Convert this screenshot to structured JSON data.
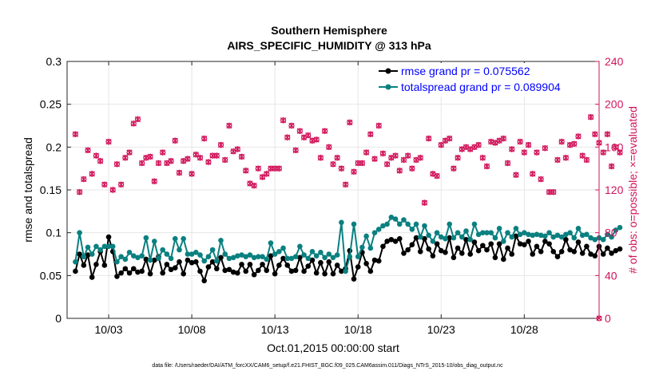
{
  "chart_data": {
    "type": "line",
    "title": "Southern Hemisphere",
    "subtitle": "AIRS_SPECIFIC_HUMIDITY @ 313 hPa",
    "xlabel": "Oct.01,2015 00:00:00 start",
    "ylabel_left": "rmse and totalspread",
    "ylabel_right": "# of obs: o=possible; ×=evaluated",
    "footnote": "data file: /Users/raeder/DAI/ATM_forcXX/CAM6_setup/f.e21.FHIST_BGC.f09_025.CAM6assim.011/Diags_NTrS_2015-10/obs_diag_output.nc",
    "xlim": [
      0.5,
      32.5
    ],
    "ylim_left": [
      0,
      0.3
    ],
    "ylim_right": [
      0,
      240
    ],
    "x_ticks": [
      {
        "value": 3,
        "label": "10/03"
      },
      {
        "value": 8,
        "label": "10/08"
      },
      {
        "value": 13,
        "label": "10/13"
      },
      {
        "value": 18,
        "label": "10/18"
      },
      {
        "value": 23,
        "label": "10/23"
      },
      {
        "value": 28,
        "label": "10/28"
      }
    ],
    "y_ticks_left": [
      {
        "value": 0,
        "label": "0"
      },
      {
        "value": 0.05,
        "label": "0.05"
      },
      {
        "value": 0.1,
        "label": "0.1"
      },
      {
        "value": 0.15,
        "label": "0.15"
      },
      {
        "value": 0.2,
        "label": "0.2"
      },
      {
        "value": 0.25,
        "label": "0.25"
      },
      {
        "value": 0.3,
        "label": "0.3"
      }
    ],
    "y_ticks_right": [
      {
        "value": 0,
        "label": "0"
      },
      {
        "value": 40,
        "label": "40"
      },
      {
        "value": 80,
        "label": "80"
      },
      {
        "value": 120,
        "label": "120"
      },
      {
        "value": 160,
        "label": "160"
      },
      {
        "value": 200,
        "label": "200"
      },
      {
        "value": 240,
        "label": "240"
      }
    ],
    "grid": true,
    "legend_position": "top-right",
    "colors": {
      "rmse": "#000000",
      "spread": "#0a8080",
      "obs": "#d0145a",
      "right_axis": "#d0145a",
      "legend_text": "#0000ff",
      "grid": "#e6e6e6"
    },
    "series": [
      {
        "name": "rmse grand pr = 0.075562",
        "axis": "left",
        "start": 1,
        "step": 0.25,
        "values": [
          0.055,
          0.075,
          0.062,
          0.074,
          0.048,
          0.063,
          0.078,
          0.062,
          0.095,
          0.078,
          0.049,
          0.053,
          0.058,
          0.053,
          0.058,
          0.054,
          0.055,
          0.069,
          0.052,
          0.068,
          0.072,
          0.053,
          0.063,
          0.057,
          0.059,
          0.066,
          0.052,
          0.068,
          0.065,
          0.066,
          0.055,
          0.044,
          0.06,
          0.066,
          0.058,
          0.071,
          0.056,
          0.057,
          0.054,
          0.053,
          0.063,
          0.055,
          0.063,
          0.051,
          0.056,
          0.063,
          0.056,
          0.073,
          0.052,
          0.062,
          0.07,
          0.062,
          0.055,
          0.056,
          0.071,
          0.055,
          0.061,
          0.068,
          0.053,
          0.065,
          0.052,
          0.066,
          0.052,
          0.062,
          0.055,
          0.058,
          0.079,
          0.046,
          0.06,
          0.077,
          0.064,
          0.055,
          0.068,
          0.067,
          0.084,
          0.09,
          0.092,
          0.09,
          0.093,
          0.076,
          0.08,
          0.086,
          0.094,
          0.078,
          0.093,
          0.081,
          0.073,
          0.087,
          0.079,
          0.077,
          0.094,
          0.071,
          0.082,
          0.076,
          0.092,
          0.075,
          0.089,
          0.079,
          0.085,
          0.08,
          0.087,
          0.071,
          0.087,
          0.069,
          0.082,
          0.075,
          0.096,
          0.087,
          0.086,
          0.09,
          0.075,
          0.084,
          0.078,
          0.09,
          0.087,
          0.078,
          0.072,
          0.078,
          0.092,
          0.08,
          0.078,
          0.089,
          0.076,
          0.084,
          0.075,
          0.073,
          0.084,
          0.075,
          0.082,
          0.076,
          0.079,
          0.081
        ]
      },
      {
        "name": "totalspread grand pr = 0.089904",
        "axis": "left",
        "start": 1,
        "step": 0.25,
        "values": [
          0.066,
          0.1,
          0.072,
          0.083,
          0.075,
          0.084,
          0.08,
          0.084,
          0.084,
          0.084,
          0.066,
          0.072,
          0.069,
          0.077,
          0.073,
          0.071,
          0.073,
          0.094,
          0.068,
          0.09,
          0.07,
          0.08,
          0.075,
          0.07,
          0.093,
          0.08,
          0.093,
          0.075,
          0.075,
          0.077,
          0.074,
          0.067,
          0.072,
          0.08,
          0.067,
          0.091,
          0.075,
          0.07,
          0.071,
          0.073,
          0.074,
          0.072,
          0.074,
          0.071,
          0.072,
          0.072,
          0.069,
          0.088,
          0.075,
          0.078,
          0.082,
          0.07,
          0.07,
          0.072,
          0.084,
          0.074,
          0.07,
          0.078,
          0.073,
          0.077,
          0.071,
          0.075,
          0.071,
          0.074,
          0.112,
          0.055,
          0.072,
          0.11,
          0.072,
          0.083,
          0.096,
          0.082,
          0.1,
          0.104,
          0.108,
          0.11,
          0.118,
          0.116,
          0.11,
          0.115,
          0.11,
          0.104,
          0.11,
          0.095,
          0.108,
          0.097,
          0.09,
          0.1,
          0.095,
          0.093,
          0.11,
          0.094,
          0.1,
          0.095,
          0.102,
          0.092,
          0.11,
          0.098,
          0.1,
          0.1,
          0.1,
          0.094,
          0.105,
          0.09,
          0.1,
          0.095,
          0.105,
          0.098,
          0.1,
          0.098,
          0.097,
          0.098,
          0.097,
          0.096,
          0.1,
          0.095,
          0.097,
          0.095,
          0.098,
          0.1,
          0.094,
          0.105,
          0.097,
          0.098,
          0.094,
          0.092,
          0.094,
          0.092,
          0.098,
          0.095,
          0.103,
          0.106
        ]
      },
      {
        "name": "# of obs possible / evaluated",
        "axis": "right",
        "start": 1,
        "step": 0.25,
        "values": [
          172,
          118,
          130,
          157,
          135,
          152,
          147,
          125,
          165,
          120,
          144,
          125,
          150,
          155,
          182,
          186,
          145,
          150,
          151,
          128,
          145,
          155,
          145,
          147,
          166,
          136,
          147,
          149,
          135,
          153,
          150,
          168,
          146,
          152,
          152,
          162,
          148,
          180,
          156,
          158,
          151,
          138,
          126,
          124,
          140,
          132,
          135,
          140,
          140,
          140,
          185,
          169,
          180,
          157,
          175,
          169,
          171,
          166,
          167,
          150,
          175,
          160,
          144,
          150,
          140,
          125,
          183,
          137,
          145,
          145,
          155,
          172,
          149,
          180,
          154,
          144,
          150,
          152,
          138,
          148,
          152,
          140,
          148,
          150,
          108,
          168,
          135,
          133,
          162,
          166,
          168,
          140,
          150,
          158,
          160,
          158,
          160,
          162,
          150,
          142,
          165,
          164,
          166,
          168,
          145,
          158,
          134,
          165,
          155,
          162,
          135,
          155,
          130,
          159,
          118,
          118,
          148,
          165,
          150,
          162,
          163,
          170,
          152,
          148,
          188,
          172,
          164,
          155,
          172,
          142,
          160,
          155
        ]
      }
    ]
  }
}
